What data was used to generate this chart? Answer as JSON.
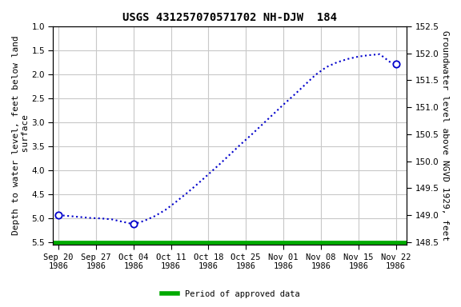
{
  "title": "USGS 431257070571702 NH-DJW  184",
  "ylabel_left": "Depth to water level, feet below land\n surface",
  "ylabel_right": "Groundwater level above NGVD 1929, feet",
  "x_tick_labels_line1": [
    "Sep 20",
    "Sep 27",
    "Oct 04",
    "Oct 11",
    "Oct 18",
    "Oct 25",
    "Nov 01",
    "Nov 08",
    "Nov 15",
    "Nov 22"
  ],
  "x_tick_labels_line2": [
    "1986",
    "1986",
    "1986",
    "1986",
    "1986",
    "1986",
    "1986",
    "1986",
    "1986",
    "1986"
  ],
  "x_ticks": [
    0,
    7,
    14,
    21,
    28,
    35,
    42,
    49,
    56,
    63
  ],
  "xlim": [
    -1,
    65
  ],
  "ylim_left": [
    5.55,
    1.0
  ],
  "ylim_right": [
    148.45,
    152.5
  ],
  "yticks_left": [
    1.0,
    1.5,
    2.0,
    2.5,
    3.0,
    3.5,
    4.0,
    4.5,
    5.0,
    5.5
  ],
  "yticks_right": [
    148.5,
    149.0,
    149.5,
    150.0,
    150.5,
    151.0,
    151.5,
    152.0,
    152.5
  ],
  "data_x": [
    0,
    2,
    4,
    6,
    8,
    10,
    12,
    14,
    16,
    18,
    20,
    22,
    24,
    26,
    28,
    30,
    32,
    34,
    36,
    38,
    40,
    42,
    44,
    46,
    48,
    50,
    52,
    54,
    56,
    58,
    60,
    62,
    63
  ],
  "data_y_depth": [
    4.93,
    4.95,
    4.97,
    4.99,
    5.0,
    5.02,
    5.07,
    5.12,
    5.05,
    4.95,
    4.82,
    4.65,
    4.47,
    4.28,
    4.08,
    3.88,
    3.67,
    3.46,
    3.26,
    3.05,
    2.84,
    2.63,
    2.43,
    2.22,
    2.01,
    1.85,
    1.75,
    1.68,
    1.63,
    1.6,
    1.58,
    1.75,
    1.78
  ],
  "circle_points_x": [
    0,
    14,
    63
  ],
  "circle_points_y": [
    4.93,
    5.12,
    1.78
  ],
  "line_color": "#0000cc",
  "circle_facecolor": "#ffffff",
  "circle_edgecolor": "#0000cc",
  "legend_color": "#00aa00",
  "legend_label": "Period of approved data",
  "background_color": "#ffffff",
  "grid_color": "#c8c8c8",
  "title_fontsize": 10,
  "axis_label_fontsize": 8,
  "tick_fontsize": 7.5
}
